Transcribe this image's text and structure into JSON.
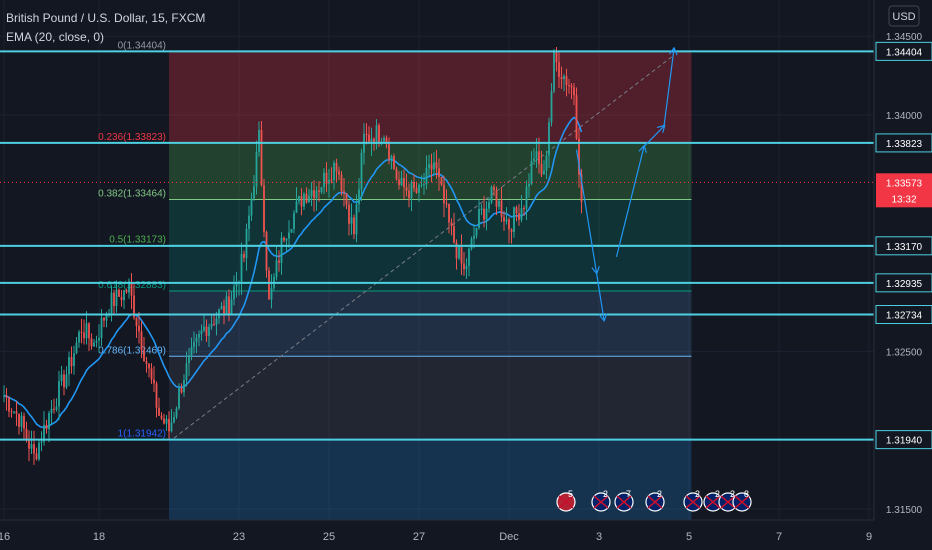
{
  "header": {
    "title": "British Pound / U.S. Dollar, 15, FXCM",
    "indicator": "EMA (20, close, 0)",
    "currency": "USD"
  },
  "colors": {
    "background": "#131722",
    "grid": "#1e2230",
    "up": "#26a69a",
    "down": "#ef5350",
    "ema": "#2196f3",
    "hline": "#4dd0e1",
    "axis_text": "#b2b5be",
    "price_label": "#f23645"
  },
  "chart_data": {
    "type": "candlestick",
    "y_range": [
      1.3143,
      1.3473
    ],
    "x_labels": [
      {
        "label": "16",
        "i": 0
      },
      {
        "label": "18",
        "i": 38
      },
      {
        "label": "23",
        "i": 94
      },
      {
        "label": "25",
        "i": 130
      },
      {
        "label": "27",
        "i": 166
      },
      {
        "label": "Dec",
        "i": 202
      },
      {
        "label": "3",
        "i": 238
      },
      {
        "label": "5",
        "i": 274
      },
      {
        "label": "7",
        "i": 310
      },
      {
        "label": "9",
        "i": 346
      }
    ],
    "price_axis_ticks": [
      "1.34500",
      "1.34000",
      "1.32500",
      "1.31500"
    ],
    "horizontal_levels": [
      {
        "value": 1.34404,
        "label": "1.34404"
      },
      {
        "value": 1.33823,
        "label": "1.33823"
      },
      {
        "value": 1.3317,
        "label": "1.33170"
      },
      {
        "value": 1.32935,
        "label": "1.32935"
      },
      {
        "value": 1.32734,
        "label": "1.32734"
      },
      {
        "value": 1.3194,
        "label": "1.31940"
      }
    ],
    "current_price": {
      "value": 1.33573,
      "label": "1.33573",
      "countdown": "13:32"
    },
    "fibonacci": {
      "start_i": 66,
      "end_i": 275,
      "levels": [
        {
          "ratio": "0",
          "value": 1.34404,
          "text": "0(1.34404)"
        },
        {
          "ratio": "0.236",
          "value": 1.33823,
          "text": "0.236(1.33823)"
        },
        {
          "ratio": "0.382",
          "value": 1.33464,
          "text": "0.382(1.33464)"
        },
        {
          "ratio": "0.5",
          "value": 1.33173,
          "text": "0.5(1.33173)"
        },
        {
          "ratio": "0.618",
          "value": 1.32883,
          "text": "0.618(1.32883)"
        },
        {
          "ratio": "0.786",
          "value": 1.32469,
          "text": "0.786(1.32469)"
        },
        {
          "ratio": "1",
          "value": 1.31942,
          "text": "1(1.31942)"
        }
      ],
      "trend_from": {
        "i": 68,
        "value": 1.3195
      },
      "trend_to": {
        "i": 268,
        "value": 1.3438
      }
    },
    "projection_path": [
      {
        "i": 229,
        "value": 1.3378
      },
      {
        "i": 237,
        "value": 1.33
      },
      {
        "i": 240,
        "value": 1.327
      },
      {
        "i": 245,
        "value": 1.331
      },
      {
        "i": 256,
        "value": 1.338
      },
      {
        "i": 264,
        "value": 1.3393
      },
      {
        "i": 268,
        "value": 1.3442
      }
    ],
    "key_points": [
      {
        "i": 0,
        "value": 1.3222
      },
      {
        "i": 6,
        "value": 1.3208
      },
      {
        "i": 12,
        "value": 1.3183
      },
      {
        "i": 18,
        "value": 1.321
      },
      {
        "i": 26,
        "value": 1.324
      },
      {
        "i": 31,
        "value": 1.3265
      },
      {
        "i": 36,
        "value": 1.3255
      },
      {
        "i": 42,
        "value": 1.328
      },
      {
        "i": 50,
        "value": 1.329
      },
      {
        "i": 56,
        "value": 1.325
      },
      {
        "i": 62,
        "value": 1.321
      },
      {
        "i": 66,
        "value": 1.32
      },
      {
        "i": 72,
        "value": 1.3235
      },
      {
        "i": 80,
        "value": 1.3265
      },
      {
        "i": 90,
        "value": 1.328
      },
      {
        "i": 96,
        "value": 1.331
      },
      {
        "i": 102,
        "value": 1.3385
      },
      {
        "i": 106,
        "value": 1.328
      },
      {
        "i": 112,
        "value": 1.3325
      },
      {
        "i": 120,
        "value": 1.335
      },
      {
        "i": 126,
        "value": 1.3355
      },
      {
        "i": 133,
        "value": 1.337
      },
      {
        "i": 140,
        "value": 1.3325
      },
      {
        "i": 144,
        "value": 1.3385
      },
      {
        "i": 152,
        "value": 1.339
      },
      {
        "i": 158,
        "value": 1.3355
      },
      {
        "i": 166,
        "value": 1.335
      },
      {
        "i": 172,
        "value": 1.337
      },
      {
        "i": 178,
        "value": 1.333
      },
      {
        "i": 184,
        "value": 1.33
      },
      {
        "i": 190,
        "value": 1.3335
      },
      {
        "i": 196,
        "value": 1.335
      },
      {
        "i": 202,
        "value": 1.333
      },
      {
        "i": 208,
        "value": 1.3345
      },
      {
        "i": 212,
        "value": 1.3375
      },
      {
        "i": 216,
        "value": 1.336
      },
      {
        "i": 220,
        "value": 1.3435
      },
      {
        "i": 224,
        "value": 1.3425
      },
      {
        "i": 228,
        "value": 1.3415
      },
      {
        "i": 231,
        "value": 1.3345
      }
    ]
  },
  "event_icons": [
    {
      "name": "us-flag-event-icon",
      "label": "5"
    },
    {
      "name": "uk-flag-event-icon",
      "label": "2"
    },
    {
      "name": "event-count-icon",
      "label": "7"
    },
    {
      "name": "event-count-icon-2",
      "label": "2"
    },
    {
      "name": "uk-flag-event-icon-2",
      "label": "2"
    },
    {
      "name": "uk-flag-event-icon-3",
      "label": "2"
    },
    {
      "name": "uk-flag-event-icon-4",
      "label": "2"
    },
    {
      "name": "uk-flag-event-icon-5",
      "label": "8"
    }
  ]
}
